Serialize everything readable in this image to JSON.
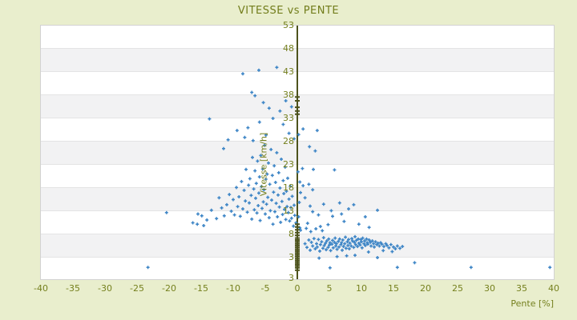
{
  "title": "VITESSE vs PENTE",
  "colors": {
    "page_background": "#e9eecd",
    "band_light": "#ffffff",
    "band_dark": "#f2f2f3",
    "band_line": "#e4e4e4",
    "label_olive": "#75801e",
    "axis_line": "#4d531c",
    "marker_blue": "#3d85c6"
  },
  "chart_data": {
    "type": "scatter",
    "title": "VITESSE vs PENTE",
    "xlabel": "Pente [%]",
    "ylabel": "Vitesse [km/h]",
    "xlim": [
      -40,
      40
    ],
    "ylim": [
      -2,
      53
    ],
    "grid": "horizontal-bands",
    "legend": "none",
    "marker": "plus",
    "x_ticks": [
      -40,
      -35,
      -30,
      -25,
      -20,
      -15,
      -10,
      -5,
      0,
      5,
      10,
      15,
      20,
      25,
      30,
      35,
      40
    ],
    "y_ticks": [
      53,
      48,
      43,
      38,
      33,
      28,
      23,
      18,
      13,
      8,
      3
    ],
    "y_axis_bottom_label": "3",
    "axis_marks_x0_y": [
      0.3,
      0.8,
      1.2,
      1.6,
      2.0,
      2.4,
      2.8,
      3.2,
      3.6,
      4.0,
      4.4,
      4.8,
      5.2,
      5.6,
      6.0,
      6.4,
      6.8,
      7.2,
      7.8,
      8.4,
      9.0,
      9.6,
      10.2,
      33.9,
      34.6,
      35.4,
      36.8,
      37.6
    ],
    "points": [
      [
        1.2,
        6.0
      ],
      [
        1.5,
        5.2
      ],
      [
        1.8,
        6.8
      ],
      [
        2.0,
        4.6
      ],
      [
        2.2,
        6.3
      ],
      [
        2.4,
        5.5
      ],
      [
        2.6,
        7.1
      ],
      [
        2.8,
        4.9
      ],
      [
        3.0,
        6.0
      ],
      [
        3.1,
        5.3
      ],
      [
        3.3,
        6.9
      ],
      [
        3.5,
        4.4
      ],
      [
        3.6,
        5.8
      ],
      [
        3.8,
        6.4
      ],
      [
        4.0,
        5.0
      ],
      [
        4.1,
        7.3
      ],
      [
        4.2,
        5.6
      ],
      [
        4.4,
        6.1
      ],
      [
        4.5,
        4.7
      ],
      [
        4.6,
        6.6
      ],
      [
        4.8,
        5.2
      ],
      [
        4.9,
        7.0
      ],
      [
        5.0,
        5.7
      ],
      [
        5.1,
        6.2
      ],
      [
        5.2,
        4.5
      ],
      [
        5.4,
        5.9
      ],
      [
        5.5,
        6.7
      ],
      [
        5.6,
        5.1
      ],
      [
        5.8,
        6.3
      ],
      [
        5.9,
        7.2
      ],
      [
        6.0,
        5.5
      ],
      [
        6.1,
        6.0
      ],
      [
        6.2,
        4.8
      ],
      [
        6.4,
        6.5
      ],
      [
        6.5,
        5.3
      ],
      [
        6.6,
        7.0
      ],
      [
        6.8,
        5.8
      ],
      [
        6.9,
        6.2
      ],
      [
        7.0,
        4.6
      ],
      [
        7.1,
        6.8
      ],
      [
        7.2,
        5.4
      ],
      [
        7.4,
        6.0
      ],
      [
        7.5,
        7.4
      ],
      [
        7.6,
        5.0
      ],
      [
        7.8,
        6.4
      ],
      [
        7.9,
        5.6
      ],
      [
        8.0,
        6.9
      ],
      [
        8.1,
        4.9
      ],
      [
        8.2,
        6.1
      ],
      [
        8.4,
        5.5
      ],
      [
        8.5,
        7.1
      ],
      [
        8.6,
        6.6
      ],
      [
        8.8,
        5.2
      ],
      [
        8.9,
        6.3
      ],
      [
        9.0,
        7.5
      ],
      [
        9.1,
        5.8
      ],
      [
        9.2,
        6.7
      ],
      [
        9.4,
        5.4
      ],
      [
        9.5,
        7.0
      ],
      [
        9.6,
        6.1
      ],
      [
        9.8,
        5.7
      ],
      [
        9.9,
        6.9
      ],
      [
        10.0,
        6.4
      ],
      [
        10.1,
        5.1
      ],
      [
        10.2,
        7.2
      ],
      [
        10.4,
        6.0
      ],
      [
        10.5,
        6.6
      ],
      [
        10.6,
        5.6
      ],
      [
        10.8,
        7.0
      ],
      [
        10.9,
        6.2
      ],
      [
        11.0,
        5.9
      ],
      [
        11.2,
        6.8
      ],
      [
        11.4,
        6.3
      ],
      [
        11.5,
        5.5
      ],
      [
        11.7,
        6.6
      ],
      [
        11.9,
        6.0
      ],
      [
        12.0,
        5.3
      ],
      [
        12.2,
        6.4
      ],
      [
        12.4,
        5.8
      ],
      [
        12.6,
        6.1
      ],
      [
        12.8,
        5.5
      ],
      [
        13.0,
        6.2
      ],
      [
        13.2,
        5.9
      ],
      [
        13.5,
        5.4
      ],
      [
        13.8,
        6.0
      ],
      [
        14.0,
        5.6
      ],
      [
        14.3,
        5.1
      ],
      [
        14.6,
        5.8
      ],
      [
        15.0,
        5.3
      ],
      [
        15.3,
        4.9
      ],
      [
        15.6,
        5.5
      ],
      [
        16.0,
        5.0
      ],
      [
        16.4,
        5.4
      ],
      [
        5.1,
        0.8
      ],
      [
        15.6,
        0.9
      ],
      [
        6.2,
        3.2
      ],
      [
        9.0,
        3.5
      ],
      [
        12.5,
        3.0
      ],
      [
        14.8,
        4.3
      ],
      [
        3.4,
        2.9
      ],
      [
        7.7,
        3.4
      ],
      [
        11.1,
        4.2
      ],
      [
        13.4,
        4.5
      ],
      [
        -0.2,
        10.5
      ],
      [
        -0.4,
        12.1
      ],
      [
        -0.5,
        14.3
      ],
      [
        -0.6,
        9.8
      ],
      [
        -0.8,
        16.2
      ],
      [
        -0.9,
        11.5
      ],
      [
        -1.0,
        13.8
      ],
      [
        -1.1,
        18.4
      ],
      [
        -1.2,
        10.9
      ],
      [
        -1.3,
        15.6
      ],
      [
        -1.4,
        12.7
      ],
      [
        -1.5,
        20.1
      ],
      [
        -1.6,
        14.0
      ],
      [
        -1.7,
        17.3
      ],
      [
        -1.8,
        11.2
      ],
      [
        -1.9,
        22.5
      ],
      [
        -2.0,
        13.4
      ],
      [
        -2.1,
        16.8
      ],
      [
        -2.2,
        19.6
      ],
      [
        -2.3,
        12.3
      ],
      [
        -2.4,
        15.1
      ],
      [
        -2.5,
        24.2
      ],
      [
        -2.6,
        10.6
      ],
      [
        -2.7,
        18.0
      ],
      [
        -2.8,
        13.9
      ],
      [
        -2.9,
        21.3
      ],
      [
        -3.0,
        16.5
      ],
      [
        -3.1,
        11.8
      ],
      [
        -3.2,
        25.6
      ],
      [
        -3.3,
        14.7
      ],
      [
        -3.4,
        19.2
      ],
      [
        -3.5,
        12.9
      ],
      [
        -3.6,
        22.8
      ],
      [
        -3.7,
        17.1
      ],
      [
        -3.8,
        10.2
      ],
      [
        -3.9,
        20.7
      ],
      [
        -4.0,
        15.4
      ],
      [
        -4.1,
        26.3
      ],
      [
        -4.2,
        13.1
      ],
      [
        -4.3,
        18.8
      ],
      [
        -4.4,
        11.6
      ],
      [
        -4.5,
        23.4
      ],
      [
        -4.6,
        16.0
      ],
      [
        -4.7,
        21.0
      ],
      [
        -4.8,
        14.5
      ],
      [
        -4.9,
        19.9
      ],
      [
        -5.0,
        12.4
      ],
      [
        -5.1,
        27.2
      ],
      [
        -5.2,
        17.6
      ],
      [
        -5.3,
        15.0
      ],
      [
        -5.4,
        22.1
      ],
      [
        -5.5,
        13.6
      ],
      [
        -5.6,
        18.3
      ],
      [
        -5.7,
        25.0
      ],
      [
        -5.8,
        11.0
      ],
      [
        -5.9,
        20.4
      ],
      [
        -6.0,
        16.9
      ],
      [
        -6.1,
        14.2
      ],
      [
        -6.2,
        23.8
      ],
      [
        -6.3,
        12.6
      ],
      [
        -6.4,
        19.0
      ],
      [
        -6.5,
        15.8
      ],
      [
        -6.6,
        21.7
      ],
      [
        -6.7,
        13.3
      ],
      [
        -6.8,
        17.8
      ],
      [
        -7.0,
        24.6
      ],
      [
        -7.1,
        11.3
      ],
      [
        -7.2,
        16.4
      ],
      [
        -7.4,
        20.0
      ],
      [
        -7.5,
        14.8
      ],
      [
        -7.6,
        18.6
      ],
      [
        -7.8,
        12.8
      ],
      [
        -8.0,
        22.0
      ],
      [
        -8.1,
        15.2
      ],
      [
        -8.3,
        17.5
      ],
      [
        -8.5,
        13.5
      ],
      [
        -8.7,
        19.4
      ],
      [
        -8.9,
        11.9
      ],
      [
        -9.1,
        16.1
      ],
      [
        -9.3,
        14.0
      ],
      [
        -9.5,
        18.1
      ],
      [
        -9.8,
        12.2
      ],
      [
        -10.0,
        15.5
      ],
      [
        -10.3,
        13.0
      ],
      [
        -10.6,
        16.6
      ],
      [
        -11.0,
        14.4
      ],
      [
        -11.4,
        12.0
      ],
      [
        -11.8,
        13.7
      ],
      [
        -12.2,
        15.9
      ],
      [
        -12.6,
        11.4
      ],
      [
        0.2,
        11.8
      ],
      [
        0.3,
        14.9
      ],
      [
        0.4,
        9.4
      ],
      [
        0.5,
        17.0
      ],
      [
        0.1,
        21.5
      ],
      [
        0.4,
        19.3
      ],
      [
        -6.0,
        43.4
      ],
      [
        -3.2,
        44.0
      ],
      [
        -8.5,
        42.6
      ],
      [
        -7.1,
        38.6
      ],
      [
        -6.6,
        37.9
      ],
      [
        -5.3,
        36.4
      ],
      [
        -4.4,
        35.2
      ],
      [
        -2.7,
        34.6
      ],
      [
        -1.8,
        36.8
      ],
      [
        -0.9,
        35.5
      ],
      [
        -3.8,
        33.0
      ],
      [
        -2.2,
        31.7
      ],
      [
        -5.9,
        32.2
      ],
      [
        -7.7,
        31.0
      ],
      [
        -9.4,
        30.4
      ],
      [
        -1.3,
        29.8
      ],
      [
        -0.5,
        28.6
      ],
      [
        -4.9,
        29.4
      ],
      [
        -6.9,
        28.2
      ],
      [
        -8.2,
        28.9
      ],
      [
        -10.8,
        28.4
      ],
      [
        0.9,
        30.7
      ],
      [
        3.1,
        30.4
      ],
      [
        0.2,
        29.5
      ],
      [
        1.9,
        26.9
      ],
      [
        2.8,
        26.0
      ],
      [
        -11.5,
        26.5
      ],
      [
        -13.7,
        32.9
      ],
      [
        -23.3,
        0.9
      ],
      [
        -20.4,
        12.7
      ],
      [
        -15.5,
        12.4
      ],
      [
        -14.9,
        12.0
      ],
      [
        -16.3,
        10.5
      ],
      [
        -13.4,
        13.2
      ],
      [
        -14.1,
        11.1
      ],
      [
        -15.6,
        10.2
      ],
      [
        -14.6,
        9.9
      ],
      [
        0.9,
        18.5
      ],
      [
        1.8,
        18.8
      ],
      [
        2.5,
        22.0
      ],
      [
        5.8,
        21.9
      ],
      [
        0.8,
        22.2
      ],
      [
        2.4,
        17.6
      ],
      [
        2.4,
        12.9
      ],
      [
        5.3,
        13.1
      ],
      [
        6.9,
        12.4
      ],
      [
        3.3,
        12.2
      ],
      [
        5.5,
        11.9
      ],
      [
        1.2,
        15.9
      ],
      [
        2.0,
        14.1
      ],
      [
        4.1,
        14.5
      ],
      [
        6.6,
        14.8
      ],
      [
        3.6,
        9.7
      ],
      [
        1.6,
        10.4
      ],
      [
        4.8,
        10.1
      ],
      [
        7.3,
        10.8
      ],
      [
        2.9,
        9.2
      ],
      [
        8.0,
        13.5
      ],
      [
        10.6,
        11.8
      ],
      [
        12.5,
        13.2
      ],
      [
        8.8,
        14.4
      ],
      [
        0.5,
        8.9
      ],
      [
        1.4,
        9.3
      ],
      [
        2.1,
        8.6
      ],
      [
        3.9,
        8.8
      ],
      [
        9.6,
        10.2
      ],
      [
        11.2,
        9.5
      ],
      [
        18.3,
        1.9
      ],
      [
        27.1,
        0.9
      ],
      [
        39.4,
        0.9
      ]
    ]
  }
}
